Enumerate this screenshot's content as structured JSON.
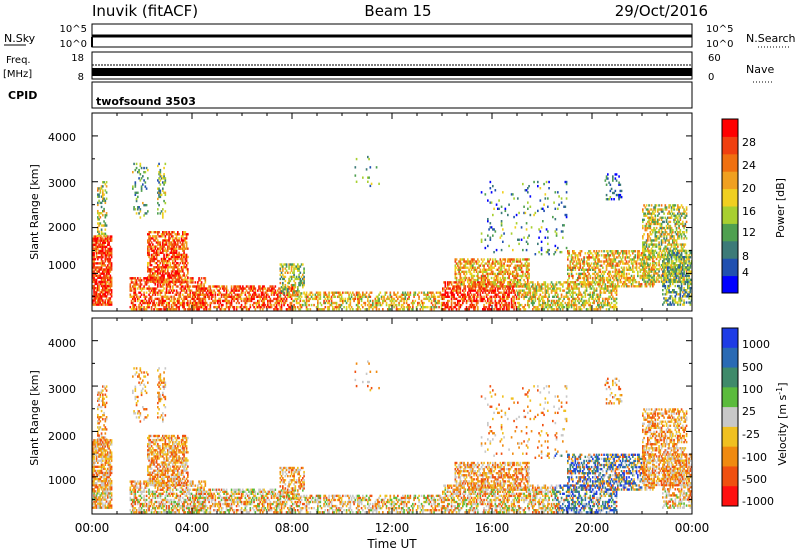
{
  "header": {
    "station": "Inuvik (fitACF)",
    "beam": "Beam 15",
    "date": "29/Oct/2016"
  },
  "strips": {
    "sky_label": "N.Sky",
    "sky_ticks": [
      "10^5",
      "10^0"
    ],
    "search_label": "N.Search",
    "freq_label": "Freq.",
    "freq_unit": "[MHz]",
    "freq_ticks": [
      "18",
      "8"
    ],
    "nave_label": "Nave",
    "nave_ticks": [
      "60",
      "0"
    ],
    "cpid_label": "CPID",
    "cpid_value": "twofsound 3503"
  },
  "chart_data": [
    {
      "type": "heatmap",
      "title": "",
      "xlabel": "Time UT",
      "ylabel": "Slant Range [km]",
      "x_ticks": [
        "00:00",
        "04:00",
        "08:00",
        "12:00",
        "16:00",
        "20:00",
        "00:00"
      ],
      "y_ticks": [
        "1000",
        "2000",
        "3000",
        "4000"
      ],
      "xlim_hours": [
        0,
        24
      ],
      "ylim_km": [
        180,
        4500
      ],
      "colorbar": {
        "label": "Power [dB]",
        "ticks": [
          "4",
          "8",
          "12",
          "16",
          "20",
          "24",
          "28"
        ],
        "range": [
          0,
          30
        ],
        "colors": [
          "#0000ff",
          "#2050b0",
          "#3c7a78",
          "#4fa050",
          "#a8d030",
          "#f0d020",
          "#f0a020",
          "#f07010",
          "#f04010",
          "#ff0000"
        ]
      }
    },
    {
      "type": "heatmap",
      "title": "",
      "xlabel": "Time UT",
      "ylabel": "Slant Range [km]",
      "x_ticks": [
        "00:00",
        "04:00",
        "08:00",
        "12:00",
        "16:00",
        "20:00",
        "00:00"
      ],
      "y_ticks": [
        "1000",
        "2000",
        "3000",
        "4000"
      ],
      "xlim_hours": [
        0,
        24
      ],
      "ylim_km": [
        180,
        4500
      ],
      "colorbar": {
        "label": "Velocity [m s",
        "label_sup": "-1",
        "label_end": "]",
        "ticks": [
          "1000",
          "500",
          "100",
          "25",
          "-25",
          "-100",
          "-500",
          "-1000"
        ],
        "colors": [
          "#1e3ce6",
          "#2a6ab4",
          "#3f8a6a",
          "#5bbb3c",
          "#c8c8c8",
          "#f0c020",
          "#f08a10",
          "#f05010",
          "#ff1010"
        ]
      }
    }
  ],
  "colors": {
    "frame": "#000000",
    "background": "#ffffff"
  }
}
